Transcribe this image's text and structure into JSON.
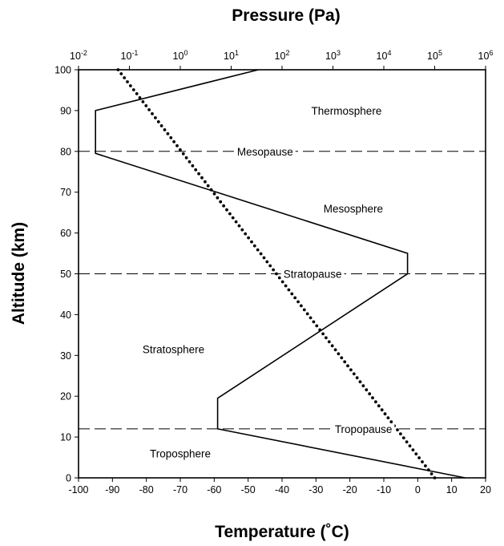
{
  "chart_data": {
    "type": "line",
    "title": "",
    "xlabel": "Temperature (˚C)",
    "x2label": "Pressure (Pa)",
    "ylabel": "Altitude (km)",
    "xlim": [
      -100,
      20
    ],
    "ylim": [
      0,
      100
    ],
    "x2lim_log10": [
      -2,
      6
    ],
    "x_ticks": [
      -100,
      -90,
      -80,
      -70,
      -60,
      -50,
      -40,
      -30,
      -20,
      -10,
      0,
      10,
      20
    ],
    "y_ticks": [
      0,
      10,
      20,
      30,
      40,
      50,
      60,
      70,
      80,
      90,
      100
    ],
    "x2_ticks": [
      {
        "base": "10",
        "exp": "-2",
        "value": 0.01
      },
      {
        "base": "10",
        "exp": "-1",
        "value": 0.1
      },
      {
        "base": "10",
        "exp": "0",
        "value": 1
      },
      {
        "base": "10",
        "exp": "1",
        "value": 10
      },
      {
        "base": "10",
        "exp": "2",
        "value": 100
      },
      {
        "base": "10",
        "exp": "3",
        "value": 1000
      },
      {
        "base": "10",
        "exp": "4",
        "value": 10000
      },
      {
        "base": "10",
        "exp": "5",
        "value": 100000
      },
      {
        "base": "10",
        "exp": "6",
        "value": 1000000
      }
    ],
    "grid": false,
    "series": [
      {
        "style": "solid",
        "axis": "temperature",
        "points": [
          [
            14,
            0
          ],
          [
            -59,
            12
          ],
          [
            -59,
            19.5
          ],
          [
            -3,
            50
          ],
          [
            -3,
            55
          ],
          [
            -95,
            79.5
          ],
          [
            -95,
            90
          ],
          [
            -47,
            100
          ]
        ]
      },
      {
        "style": "dotted",
        "axis": "pressure",
        "points": [
          [
            100000,
            0
          ],
          [
            0.06,
            100
          ]
        ]
      }
    ],
    "boundaries": [
      {
        "label": "Tropopause",
        "altitude": 12
      },
      {
        "label": "Stratopause",
        "altitude": 50
      },
      {
        "label": "Mesopause",
        "altitude": 80
      }
    ],
    "layers": [
      {
        "label": "Troposphere",
        "temp": -70,
        "altitude": 6
      },
      {
        "label": "Stratosphere",
        "temp": -72,
        "altitude": 31.5
      },
      {
        "label": "Mesosphere",
        "temp": -19,
        "altitude": 66
      },
      {
        "label": "Thermosphere",
        "temp": -21,
        "altitude": 90
      }
    ]
  }
}
